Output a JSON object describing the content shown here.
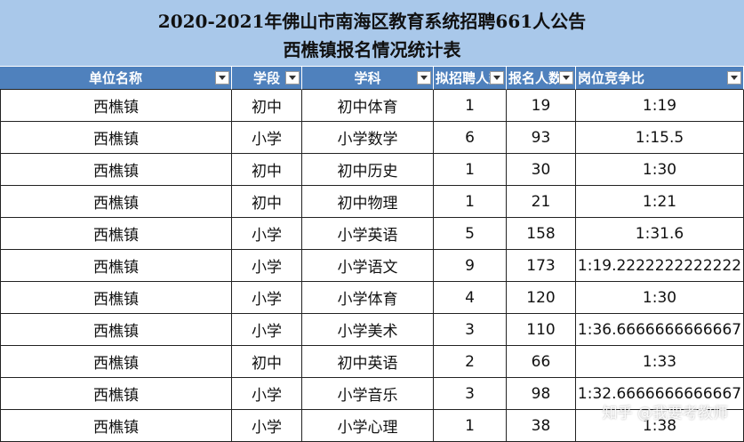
{
  "header": {
    "title": "2020-2021年佛山市南海区教育系统招聘661人公告",
    "subtitle": "西樵镇报名情况统计表"
  },
  "table": {
    "columns": [
      "单位名称",
      "学段",
      "学科",
      "拟招聘人数",
      "报名人数",
      "岗位竞争比"
    ],
    "rows": [
      [
        "西樵镇",
        "初中",
        "初中体育",
        1,
        19,
        "1:19"
      ],
      [
        "西樵镇",
        "小学",
        "小学数学",
        6,
        93,
        "1:15.5"
      ],
      [
        "西樵镇",
        "初中",
        "初中历史",
        1,
        30,
        "1:30"
      ],
      [
        "西樵镇",
        "初中",
        "初中物理",
        1,
        21,
        "1:21"
      ],
      [
        "西樵镇",
        "小学",
        "小学英语",
        5,
        158,
        "1:31.6"
      ],
      [
        "西樵镇",
        "小学",
        "小学语文",
        9,
        173,
        "1:19.2222222222222"
      ],
      [
        "西樵镇",
        "小学",
        "小学体育",
        4,
        120,
        "1:30"
      ],
      [
        "西樵镇",
        "小学",
        "小学美术",
        3,
        110,
        "1:36.6666666666667"
      ],
      [
        "西樵镇",
        "初中",
        "初中英语",
        2,
        66,
        "1:33"
      ],
      [
        "西樵镇",
        "小学",
        "小学音乐",
        3,
        98,
        "1:32.6666666666667"
      ],
      [
        "西樵镇",
        "小学",
        "小学心理",
        1,
        38,
        "1:38"
      ]
    ]
  },
  "watermark": "知乎 @我要考教师"
}
